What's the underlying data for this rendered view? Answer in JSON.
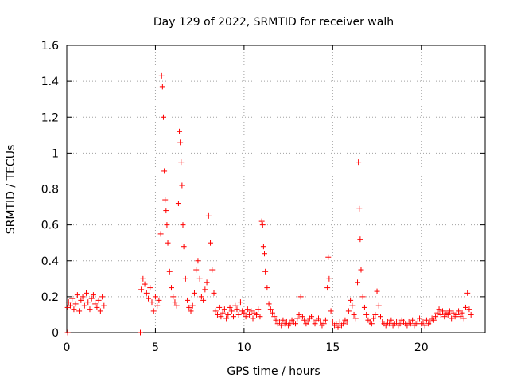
{
  "chart_data": {
    "type": "scatter",
    "title": "Day 129 of 2022, SRMTID for receiver walh",
    "xlabel": "GPS time / hours",
    "ylabel": "SRMTID / TECUs",
    "xlim": [
      0,
      23.6
    ],
    "ylim": [
      0,
      1.6
    ],
    "xticks": [
      0,
      5,
      10,
      15,
      20
    ],
    "yticks": [
      0,
      0.2,
      0.4,
      0.6,
      0.8,
      1,
      1.2,
      1.4,
      1.6
    ],
    "ytick_labels": [
      "0",
      "0.2",
      "0.4",
      "0.6",
      "0.8",
      "1",
      "1.2",
      "1.4",
      "1.6"
    ],
    "grid": true,
    "marker": "+",
    "color": "#ff0000",
    "series": [
      {
        "name": "SRMTID",
        "x": [
          0.05,
          0.05,
          0.1,
          0.2,
          0.3,
          0.4,
          0.5,
          0.6,
          0.7,
          0.8,
          0.9,
          1.0,
          1.1,
          1.2,
          1.3,
          1.4,
          1.5,
          1.6,
          1.7,
          1.8,
          1.9,
          2.0,
          2.1,
          4.15,
          4.2,
          4.3,
          4.4,
          4.5,
          4.6,
          4.7,
          4.8,
          4.9,
          5.0,
          5.1,
          5.2,
          5.3,
          5.35,
          5.4,
          5.45,
          5.5,
          5.55,
          5.6,
          5.65,
          5.7,
          5.8,
          5.9,
          6.0,
          6.1,
          6.2,
          6.3,
          6.35,
          6.4,
          6.45,
          6.5,
          6.55,
          6.6,
          6.7,
          6.8,
          6.9,
          7.0,
          7.1,
          7.2,
          7.3,
          7.4,
          7.5,
          7.6,
          7.7,
          7.8,
          7.9,
          8.0,
          8.1,
          8.2,
          8.3,
          8.4,
          8.5,
          8.6,
          8.7,
          8.8,
          8.9,
          9.0,
          9.1,
          9.2,
          9.3,
          9.4,
          9.5,
          9.6,
          9.7,
          9.8,
          9.9,
          10.0,
          10.1,
          10.2,
          10.3,
          10.4,
          10.5,
          10.6,
          10.7,
          10.8,
          10.9,
          11.0,
          11.05,
          11.1,
          11.15,
          11.2,
          11.3,
          11.4,
          11.5,
          11.6,
          11.7,
          11.8,
          11.9,
          12.0,
          12.1,
          12.2,
          12.3,
          12.4,
          12.5,
          12.6,
          12.7,
          12.8,
          12.9,
          13.0,
          13.1,
          13.2,
          13.3,
          13.4,
          13.5,
          13.6,
          13.7,
          13.8,
          13.9,
          14.0,
          14.1,
          14.2,
          14.3,
          14.4,
          14.5,
          14.6,
          14.7,
          14.75,
          14.8,
          14.9,
          15.0,
          15.1,
          15.2,
          15.3,
          15.4,
          15.5,
          15.6,
          15.7,
          15.8,
          15.9,
          16.0,
          16.1,
          16.2,
          16.3,
          16.4,
          16.45,
          16.5,
          16.55,
          16.6,
          16.7,
          16.8,
          16.9,
          17.0,
          17.1,
          17.2,
          17.3,
          17.4,
          17.5,
          17.6,
          17.7,
          17.8,
          17.9,
          18.0,
          18.1,
          18.2,
          18.3,
          18.4,
          18.5,
          18.6,
          18.7,
          18.8,
          18.9,
          19.0,
          19.1,
          19.2,
          19.3,
          19.4,
          19.5,
          19.6,
          19.7,
          19.8,
          19.9,
          20.0,
          20.1,
          20.2,
          20.3,
          20.4,
          20.5,
          20.6,
          20.7,
          20.8,
          20.9,
          21.0,
          21.1,
          21.2,
          21.3,
          21.4,
          21.5,
          21.6,
          21.7,
          21.8,
          21.9,
          22.0,
          22.1,
          22.2,
          22.3,
          22.4,
          22.5,
          22.6,
          22.7,
          22.8
        ],
        "y": [
          0.0,
          0.14,
          0.17,
          0.15,
          0.19,
          0.13,
          0.16,
          0.21,
          0.12,
          0.18,
          0.2,
          0.15,
          0.22,
          0.17,
          0.13,
          0.19,
          0.21,
          0.16,
          0.14,
          0.18,
          0.12,
          0.2,
          0.15,
          0.0,
          0.24,
          0.3,
          0.27,
          0.22,
          0.19,
          0.25,
          0.17,
          0.12,
          0.2,
          0.15,
          0.18,
          0.55,
          1.43,
          1.37,
          1.2,
          0.9,
          0.74,
          0.68,
          0.6,
          0.5,
          0.34,
          0.25,
          0.2,
          0.17,
          0.15,
          0.72,
          1.12,
          1.06,
          0.95,
          0.82,
          0.6,
          0.48,
          0.3,
          0.18,
          0.14,
          0.12,
          0.15,
          0.22,
          0.35,
          0.4,
          0.3,
          0.2,
          0.18,
          0.24,
          0.28,
          0.65,
          0.5,
          0.35,
          0.22,
          0.12,
          0.1,
          0.14,
          0.09,
          0.11,
          0.13,
          0.08,
          0.1,
          0.14,
          0.12,
          0.09,
          0.15,
          0.13,
          0.1,
          0.17,
          0.12,
          0.11,
          0.09,
          0.13,
          0.1,
          0.12,
          0.08,
          0.11,
          0.1,
          0.13,
          0.09,
          0.62,
          0.6,
          0.48,
          0.44,
          0.34,
          0.25,
          0.16,
          0.13,
          0.11,
          0.09,
          0.07,
          0.05,
          0.06,
          0.04,
          0.07,
          0.05,
          0.06,
          0.04,
          0.05,
          0.07,
          0.06,
          0.05,
          0.08,
          0.1,
          0.2,
          0.09,
          0.07,
          0.05,
          0.06,
          0.08,
          0.09,
          0.06,
          0.05,
          0.07,
          0.08,
          0.06,
          0.04,
          0.05,
          0.07,
          0.25,
          0.42,
          0.3,
          0.12,
          0.06,
          0.04,
          0.05,
          0.03,
          0.06,
          0.04,
          0.05,
          0.07,
          0.06,
          0.12,
          0.18,
          0.15,
          0.1,
          0.08,
          0.28,
          0.95,
          0.69,
          0.52,
          0.35,
          0.2,
          0.14,
          0.1,
          0.07,
          0.06,
          0.05,
          0.08,
          0.1,
          0.23,
          0.15,
          0.09,
          0.06,
          0.05,
          0.04,
          0.06,
          0.05,
          0.07,
          0.04,
          0.05,
          0.06,
          0.04,
          0.05,
          0.07,
          0.06,
          0.05,
          0.04,
          0.06,
          0.05,
          0.07,
          0.04,
          0.05,
          0.06,
          0.08,
          0.05,
          0.06,
          0.04,
          0.07,
          0.05,
          0.06,
          0.08,
          0.07,
          0.09,
          0.11,
          0.13,
          0.1,
          0.12,
          0.09,
          0.11,
          0.1,
          0.12,
          0.08,
          0.11,
          0.09,
          0.1,
          0.12,
          0.09,
          0.11,
          0.08,
          0.14,
          0.22,
          0.13,
          0.1
        ]
      }
    ]
  }
}
